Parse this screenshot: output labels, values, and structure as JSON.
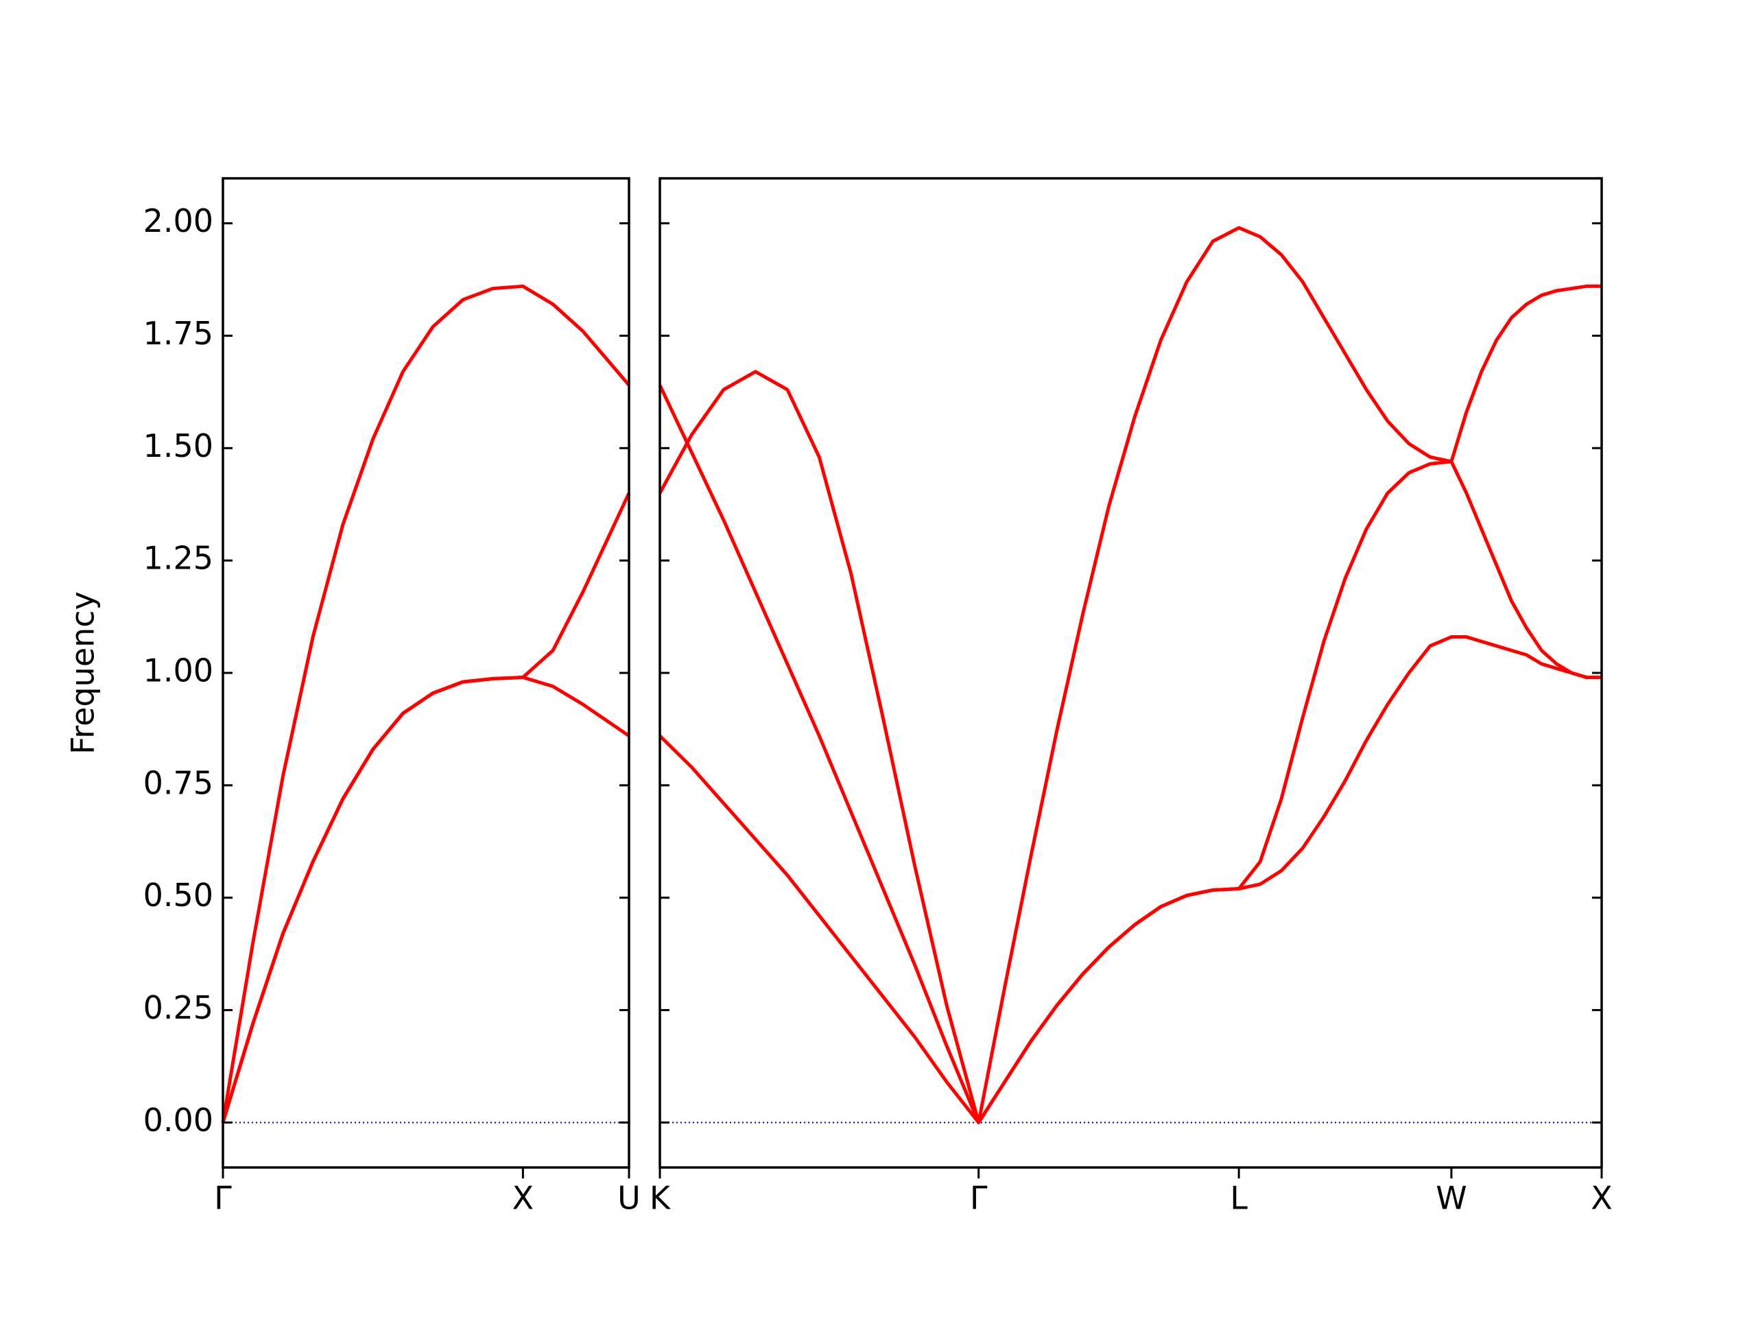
{
  "chart_data": [
    {
      "type": "line",
      "ylabel": "Frequency",
      "x": [
        0,
        0.1,
        0.2,
        0.3,
        0.4,
        0.5,
        0.6,
        0.7,
        0.8,
        0.9,
        1.0,
        1.1,
        1.2,
        1.3536
      ],
      "series": [
        {
          "color": "#ff0000",
          "values": [
            0,
            0.22,
            0.42,
            0.58,
            0.72,
            0.83,
            0.91,
            0.955,
            0.98,
            0.987,
            0.99,
            0.97,
            0.93,
            0.86
          ]
        },
        {
          "color": "#ff0000",
          "values": [
            0,
            0.22,
            0.42,
            0.58,
            0.72,
            0.83,
            0.91,
            0.955,
            0.98,
            0.987,
            0.99,
            1.05,
            1.18,
            1.4
          ]
        },
        {
          "color": "#ff0000",
          "values": [
            0,
            0.4,
            0.77,
            1.08,
            1.33,
            1.52,
            1.67,
            1.77,
            1.83,
            1.855,
            1.86,
            1.82,
            1.76,
            1.64
          ]
        }
      ],
      "xlim": [
        0,
        1.3536
      ],
      "xticks": [
        {
          "value": 0,
          "label": "Γ"
        },
        {
          "value": 1.0,
          "label": "X"
        },
        {
          "value": 1.3536,
          "label": "U"
        }
      ],
      "ylim": [
        -0.1,
        2.1
      ],
      "yticks": [
        {
          "value": 0,
          "label": "0.00"
        },
        {
          "value": 0.25,
          "label": "0.25"
        },
        {
          "value": 0.5,
          "label": "0.50"
        },
        {
          "value": 0.75,
          "label": "0.75"
        },
        {
          "value": 1,
          "label": "1.00"
        },
        {
          "value": 1.25,
          "label": "1.25"
        },
        {
          "value": 1.5,
          "label": "1.50"
        },
        {
          "value": 1.75,
          "label": "1.75"
        },
        {
          "value": 2,
          "label": "2.00"
        }
      ],
      "hline": {
        "y": 0,
        "color": "#00008b",
        "style": "dotted"
      }
    },
    {
      "type": "line",
      "x": [
        1.3536,
        1.4597,
        1.5657,
        1.6718,
        1.7779,
        1.8839,
        1.99,
        2.0961,
        2.2021,
        2.3082,
        2.4142,
        2.5008,
        2.5874,
        2.674,
        2.7606,
        2.8472,
        2.9338,
        3.0204,
        3.107,
        3.1936,
        3.2802,
        3.3509,
        3.4216,
        3.4923,
        3.563,
        3.6338,
        3.7045,
        3.7752,
        3.8459,
        3.9166,
        3.9873,
        4.0373,
        4.0873,
        4.1373,
        4.1873,
        4.2373,
        4.2873,
        4.3373,
        4.3873,
        4.4373,
        4.4873
      ],
      "series": [
        {
          "color": "#ff0000",
          "values": [
            0.86,
            0.79,
            0.71,
            0.63,
            0.55,
            0.46,
            0.37,
            0.28,
            0.19,
            0.09,
            0,
            0.09,
            0.18,
            0.26,
            0.33,
            0.39,
            0.44,
            0.48,
            0.505,
            0.517,
            0.52,
            0.53,
            0.56,
            0.61,
            0.68,
            0.76,
            0.85,
            0.93,
            1.0,
            1.06,
            1.08,
            1.08,
            1.07,
            1.06,
            1.05,
            1.04,
            1.02,
            1.01,
            1.0,
            0.99,
            0.99
          ]
        },
        {
          "color": "#ff0000",
          "values": [
            1.64,
            1.49,
            1.34,
            1.18,
            1.02,
            0.86,
            0.69,
            0.52,
            0.35,
            0.17,
            0,
            0.09,
            0.18,
            0.26,
            0.33,
            0.39,
            0.44,
            0.48,
            0.505,
            0.517,
            0.52,
            0.58,
            0.72,
            0.9,
            1.07,
            1.21,
            1.32,
            1.4,
            1.445,
            1.465,
            1.47,
            1.4,
            1.32,
            1.24,
            1.16,
            1.1,
            1.05,
            1.02,
            1.0,
            0.99,
            0.99
          ]
        },
        {
          "color": "#ff0000",
          "values": [
            1.4,
            1.53,
            1.63,
            1.67,
            1.63,
            1.48,
            1.22,
            0.9,
            0.57,
            0.26,
            0,
            0.3,
            0.59,
            0.87,
            1.13,
            1.37,
            1.57,
            1.74,
            1.87,
            1.96,
            1.99,
            1.97,
            1.93,
            1.87,
            1.79,
            1.71,
            1.63,
            1.56,
            1.51,
            1.48,
            1.47,
            1.58,
            1.67,
            1.74,
            1.79,
            1.82,
            1.84,
            1.85,
            1.855,
            1.86,
            1.86
          ]
        }
      ],
      "xlim": [
        1.3536,
        4.4873
      ],
      "xticks": [
        {
          "value": 1.3536,
          "label": "K"
        },
        {
          "value": 2.4142,
          "label": "Γ"
        },
        {
          "value": 3.2802,
          "label": "L"
        },
        {
          "value": 3.9873,
          "label": "W"
        },
        {
          "value": 4.4873,
          "label": "X"
        }
      ],
      "ylim": [
        -0.1,
        2.1
      ],
      "yticks": [
        0,
        0.25,
        0.5,
        0.75,
        1,
        1.25,
        1.5,
        1.75,
        2
      ],
      "show_ytick_labels": false,
      "hline": {
        "y": 0,
        "color": "#00008b",
        "style": "dotted"
      }
    }
  ]
}
